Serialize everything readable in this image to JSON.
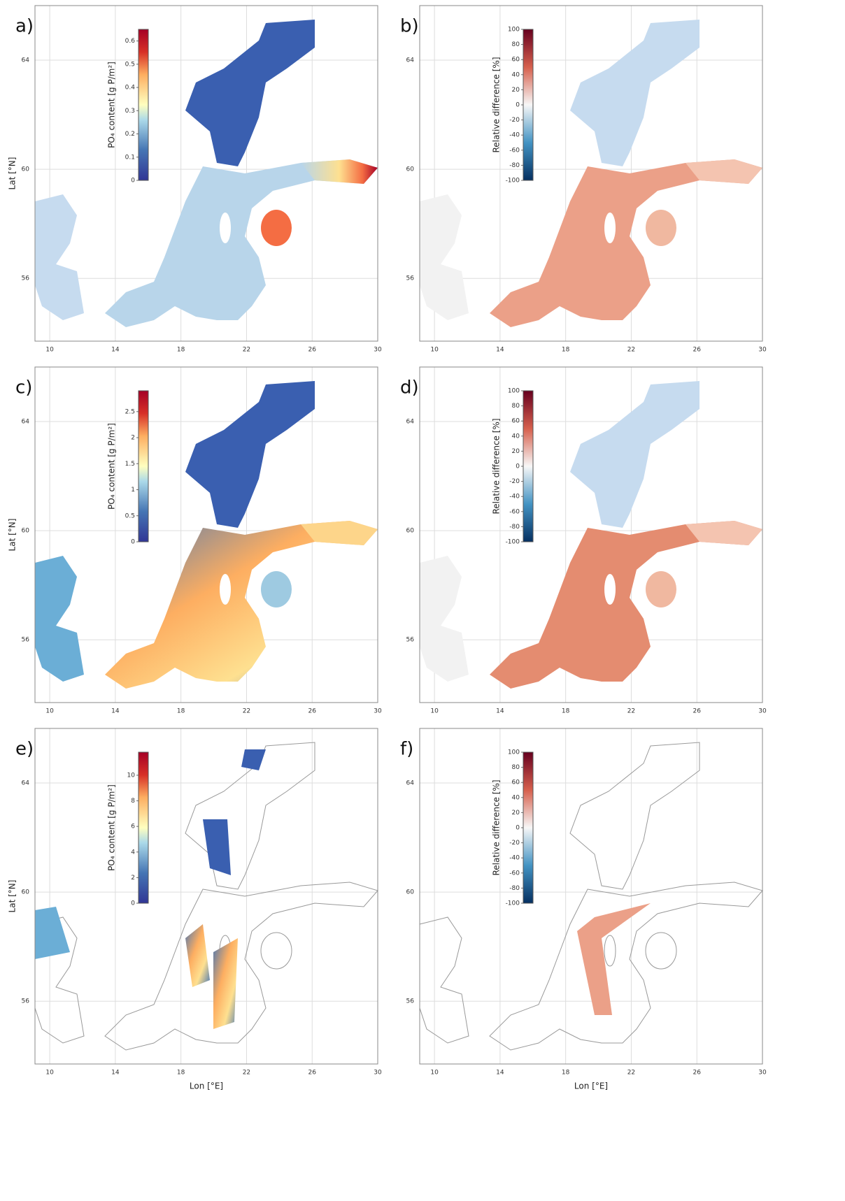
{
  "panels": [
    {
      "letter": "a)",
      "colorbar_label": "PO₄ content [g P/m²]",
      "colorbar_lim": [
        0,
        0.65
      ],
      "colorbar_ticks": [
        0,
        0.1,
        0.2,
        0.3,
        0.4,
        0.5,
        0.6
      ],
      "colormap": "sequential"
    },
    {
      "letter": "b)",
      "colorbar_label": "Relative difference [%]",
      "colorbar_lim": [
        -100,
        100
      ],
      "colorbar_ticks": [
        -100,
        -80,
        -60,
        -40,
        -20,
        0,
        20,
        40,
        60,
        80,
        100
      ],
      "colormap": "diverging"
    },
    {
      "letter": "c)",
      "colorbar_label": "PO₄ content [g P/m²]",
      "colorbar_lim": [
        0,
        2.9
      ],
      "colorbar_ticks": [
        0,
        0.5,
        1,
        1.5,
        2,
        2.5
      ],
      "colormap": "sequential"
    },
    {
      "letter": "d)",
      "colorbar_label": "Relative difference [%]",
      "colorbar_lim": [
        -100,
        100
      ],
      "colorbar_ticks": [
        -100,
        -80,
        -60,
        -40,
        -20,
        0,
        20,
        40,
        60,
        80,
        100
      ],
      "colormap": "diverging"
    },
    {
      "letter": "e)",
      "colorbar_label": "PO₄ content [g P/m²]",
      "colorbar_lim": [
        0,
        11.8
      ],
      "colorbar_ticks": [
        0,
        2,
        4,
        6,
        8,
        10
      ],
      "colormap": "sequential"
    },
    {
      "letter": "f)",
      "colorbar_label": "Relative difference [%]",
      "colorbar_lim": [
        -100,
        100
      ],
      "colorbar_ticks": [
        -100,
        -80,
        -60,
        -40,
        -20,
        0,
        20,
        40,
        60,
        80,
        100
      ],
      "colormap": "diverging"
    }
  ],
  "x_axis_label": "Lon [°E]",
  "y_axis_label": "Lat [°N]",
  "xlim": [
    9.1,
    30
  ],
  "xticks": [
    10,
    14,
    18,
    22,
    26,
    30
  ],
  "ylim": [
    53.7,
    66
  ],
  "yticks": [
    56,
    60,
    64
  ]
}
